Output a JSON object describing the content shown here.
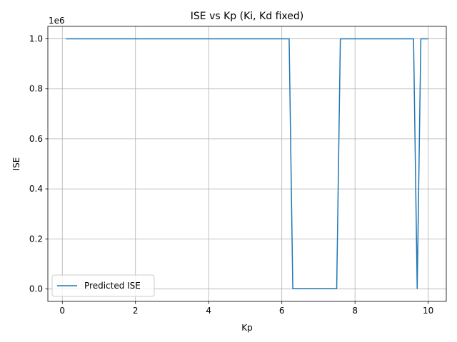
{
  "chart_data": {
    "type": "line",
    "title": "ISE vs Kp (Ki, Kd fixed)",
    "xlabel": "Kp",
    "ylabel": "ISE",
    "y_offset_label": "1e6",
    "y_scale_factor": 1000000,
    "xlim": [
      -0.395,
      10.495
    ],
    "ylim": [
      -50000,
      1050000
    ],
    "x_ticks": [
      0,
      2,
      4,
      6,
      8,
      10
    ],
    "x_tick_labels": [
      "0",
      "2",
      "4",
      "6",
      "8",
      "10"
    ],
    "y_ticks": [
      0,
      200000,
      400000,
      600000,
      800000,
      1000000
    ],
    "y_tick_labels": [
      "0.0",
      "0.2",
      "0.4",
      "0.6",
      "0.8",
      "1.0"
    ],
    "grid": true,
    "legend_position": "lower-left",
    "series": [
      {
        "name": "Predicted ISE",
        "color": "#1f77b4",
        "x": [
          0.1,
          6.2,
          6.3,
          7.5,
          7.6,
          9.6,
          9.7,
          9.8,
          10.0
        ],
        "y": [
          1000000,
          1000000,
          1000,
          1000,
          1000000,
          1000000,
          1000,
          1000000,
          1000000
        ]
      }
    ]
  }
}
